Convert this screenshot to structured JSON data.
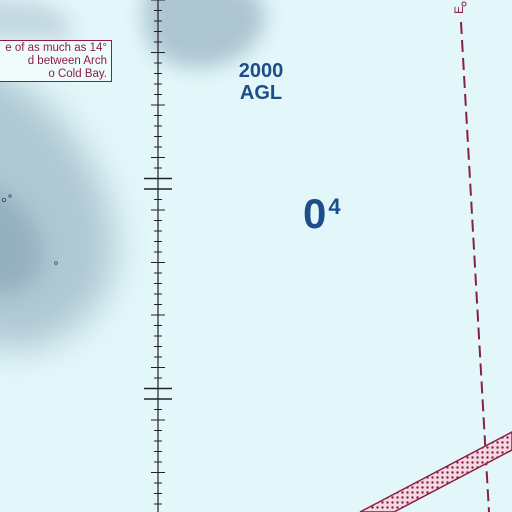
{
  "map": {
    "note_lines": [
      "e of as much as 14°",
      "d between Arch",
      "o Cold Bay."
    ],
    "altitude": {
      "value": "2000",
      "unit": "AGL"
    },
    "max_elevation_figure": {
      "thousands": "0",
      "hundreds": "4"
    },
    "edge_label": "E",
    "colors": {
      "water": "#e3f7fa",
      "land_shade": "#9fb8c6",
      "boundary": "#8a1f45",
      "label_blue": "#1d4e89",
      "grid": "#222222"
    }
  }
}
